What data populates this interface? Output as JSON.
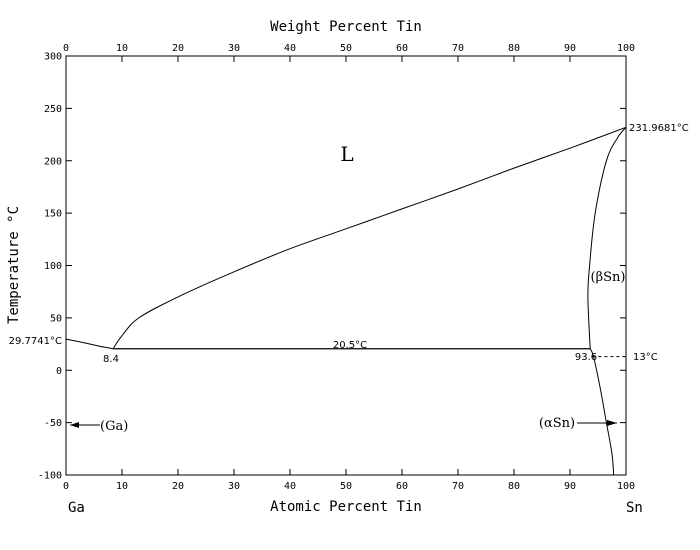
{
  "title_top": "Weight Percent Tin",
  "title_bottom": "Atomic Percent Tin",
  "y_label": "Temperature °C",
  "element_left": "Ga",
  "element_right": "Sn",
  "phase_liquid": "L",
  "phase_beta": "(βSn)",
  "phase_alpha": "(αSn)",
  "phase_ga": "(Ga)",
  "ga_melting_label": "29.7741°C",
  "sn_melting_label": "231.9681°C",
  "eutectic_temp_label": "20.5°C",
  "eutectic_left_label": "8.4",
  "eutectic_right_label": "93.6",
  "transition_label": "13°C",
  "chart_data": {
    "type": "phase_diagram",
    "xlabel": "Atomic Percent Tin",
    "x2label": "Weight Percent Tin",
    "ylabel": "Temperature °C",
    "xlim": [
      0,
      100
    ],
    "ylim": [
      -100,
      300
    ],
    "x_ticks": [
      0,
      10,
      20,
      30,
      40,
      50,
      60,
      70,
      80,
      90,
      100
    ],
    "x2_ticks": [
      0,
      10,
      20,
      30,
      40,
      50,
      60,
      70,
      80,
      90,
      100
    ],
    "y_ticks": [
      -100,
      -50,
      0,
      50,
      100,
      150,
      200,
      250,
      300
    ],
    "curves": [
      {
        "name": "liquidus-ga",
        "points": [
          [
            0,
            29.7741
          ],
          [
            3,
            26.5
          ],
          [
            6,
            23
          ],
          [
            8.4,
            20.5
          ]
        ]
      },
      {
        "name": "liquidus-sn",
        "points": [
          [
            8.4,
            20.5
          ],
          [
            10,
            33
          ],
          [
            13,
            50
          ],
          [
            20,
            70
          ],
          [
            30,
            94
          ],
          [
            40,
            116
          ],
          [
            50,
            135
          ],
          [
            60,
            154
          ],
          [
            70,
            173
          ],
          [
            80,
            193
          ],
          [
            90,
            212
          ],
          [
            100,
            231.9681
          ]
        ]
      },
      {
        "name": "eutectic-line",
        "points": [
          [
            8.4,
            20.5
          ],
          [
            93.6,
            20.5
          ]
        ]
      },
      {
        "name": "solidus-beta-sn",
        "points": [
          [
            100,
            231.9681
          ],
          [
            98.5,
            222
          ],
          [
            96.5,
            200
          ],
          [
            94.5,
            150
          ],
          [
            93.5,
            100
          ],
          [
            93.2,
            70
          ],
          [
            93.6,
            20.5
          ]
        ]
      },
      {
        "name": "beta-solvus",
        "points": [
          [
            93.6,
            20.5
          ],
          [
            94.2,
            13
          ],
          [
            95.5,
            -20
          ],
          [
            96.5,
            -50
          ],
          [
            97.5,
            -80
          ],
          [
            97.8,
            -100
          ]
        ]
      }
    ],
    "isotherms": [
      {
        "label": "20.5°C",
        "y": 20.5,
        "x_from": 8.4,
        "x_to": 93.6,
        "dashed": false
      },
      {
        "label": "13°C",
        "y": 13,
        "x_from": 94,
        "x_to": 100,
        "dashed": true
      }
    ],
    "points": [
      {
        "label": "29.7741°C",
        "x": 0,
        "y": 29.7741
      },
      {
        "label": "231.9681°C",
        "x": 100,
        "y": 231.9681
      },
      {
        "label": "8.4",
        "x": 8.4,
        "y": 20.5
      },
      {
        "label": "93.6",
        "x": 93.6,
        "y": 20.5
      }
    ]
  }
}
